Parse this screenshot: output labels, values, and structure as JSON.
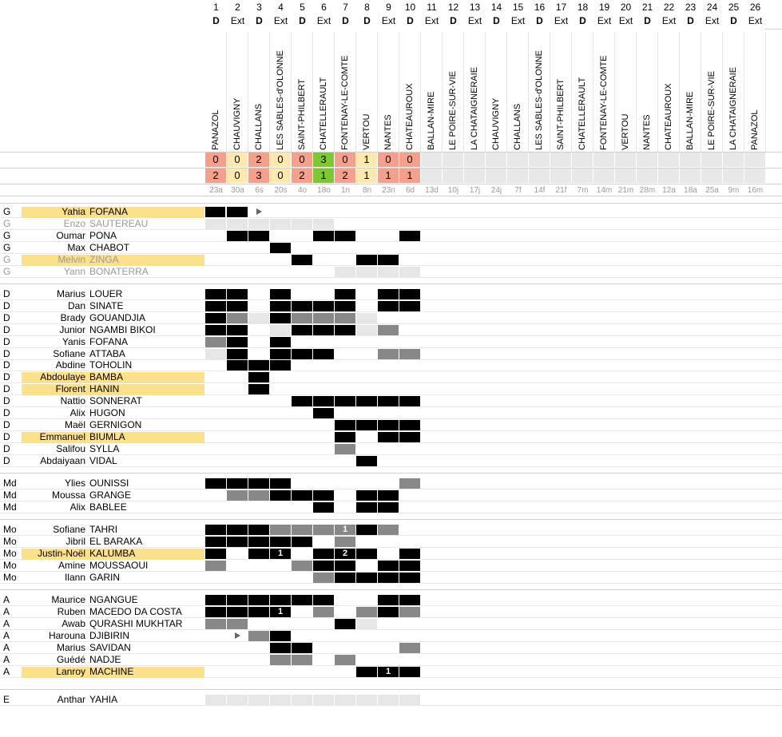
{
  "matches": [
    {
      "n": "1",
      "ha": "D",
      "venue": "PANAZOL",
      "s1": "0",
      "s2": "2",
      "c1": "#f4a08c",
      "c2": "#f4a08c",
      "date": "23a"
    },
    {
      "n": "2",
      "ha": "Ext",
      "venue": "CHAUVIGNY",
      "s1": "0",
      "s2": "0",
      "c1": "#fde8b0",
      "c2": "#fde8b0",
      "date": "30a"
    },
    {
      "n": "3",
      "ha": "D",
      "venue": "CHALLANS",
      "s1": "2",
      "s2": "3",
      "c1": "#f4a08c",
      "c2": "#f4a08c",
      "date": "6s"
    },
    {
      "n": "4",
      "ha": "Ext",
      "venue": "LES SABLES-d'OLONNE",
      "s1": "0",
      "s2": "0",
      "c1": "#fde8b0",
      "c2": "#fde8b0",
      "date": "20s"
    },
    {
      "n": "5",
      "ha": "D",
      "venue": "SAINT-PHILBERT",
      "s1": "0",
      "s2": "2",
      "c1": "#f4a08c",
      "c2": "#f4a08c",
      "date": "4o"
    },
    {
      "n": "6",
      "ha": "Ext",
      "venue": "CHATELLERAULT",
      "s1": "3",
      "s2": "1",
      "c1": "#7dc832",
      "c2": "#7dc832",
      "date": "18o"
    },
    {
      "n": "7",
      "ha": "D",
      "venue": "FONTENAY-LE-COMTE",
      "s1": "0",
      "s2": "2",
      "c1": "#f4a08c",
      "c2": "#f4a08c",
      "date": "1n"
    },
    {
      "n": "8",
      "ha": "D",
      "venue": "VERTOU",
      "s1": "1",
      "s2": "1",
      "c1": "#fde8b0",
      "c2": "#fde8b0",
      "date": "8n"
    },
    {
      "n": "9",
      "ha": "Ext",
      "venue": "NANTES",
      "s1": "0",
      "s2": "1",
      "c1": "#f4a08c",
      "c2": "#f4a08c",
      "date": "23n"
    },
    {
      "n": "10",
      "ha": "D",
      "venue": "CHATEAUROUX",
      "s1": "0",
      "s2": "1",
      "c1": "#f4a08c",
      "c2": "#f4a08c",
      "date": "6d"
    },
    {
      "n": "11",
      "ha": "Ext",
      "venue": "BALLAN-MIRE",
      "s1": "",
      "s2": "",
      "c1": "#e8e8e8",
      "c2": "#e8e8e8",
      "date": "13d"
    },
    {
      "n": "12",
      "ha": "D",
      "venue": "LE POIRE-SUR-VIE",
      "s1": "",
      "s2": "",
      "c1": "#e8e8e8",
      "c2": "#e8e8e8",
      "date": "10j"
    },
    {
      "n": "13",
      "ha": "Ext",
      "venue": "LA CHATAIGNERAIE",
      "s1": "",
      "s2": "",
      "c1": "#e8e8e8",
      "c2": "#e8e8e8",
      "date": "17j"
    },
    {
      "n": "14",
      "ha": "D",
      "venue": "CHAUVIGNY",
      "s1": "",
      "s2": "",
      "c1": "#e8e8e8",
      "c2": "#e8e8e8",
      "date": "24j"
    },
    {
      "n": "15",
      "ha": "Ext",
      "venue": "CHALLANS",
      "s1": "",
      "s2": "",
      "c1": "#e8e8e8",
      "c2": "#e8e8e8",
      "date": "7f"
    },
    {
      "n": "16",
      "ha": "D",
      "venue": "LES SABLES-d'OLONNE",
      "s1": "",
      "s2": "",
      "c1": "#e8e8e8",
      "c2": "#e8e8e8",
      "date": "14f"
    },
    {
      "n": "17",
      "ha": "Ext",
      "venue": "SAINT-PHILBERT",
      "s1": "",
      "s2": "",
      "c1": "#e8e8e8",
      "c2": "#e8e8e8",
      "date": "21f"
    },
    {
      "n": "18",
      "ha": "D",
      "venue": "CHATELLERAULT",
      "s1": "",
      "s2": "",
      "c1": "#e8e8e8",
      "c2": "#e8e8e8",
      "date": "7m"
    },
    {
      "n": "19",
      "ha": "Ext",
      "venue": "FONTENAY-LE-COMTE",
      "s1": "",
      "s2": "",
      "c1": "#e8e8e8",
      "c2": "#e8e8e8",
      "date": "14m"
    },
    {
      "n": "20",
      "ha": "Ext",
      "venue": "VERTOU",
      "s1": "",
      "s2": "",
      "c1": "#e8e8e8",
      "c2": "#e8e8e8",
      "date": "21m"
    },
    {
      "n": "21",
      "ha": "D",
      "venue": "NANTES",
      "s1": "",
      "s2": "",
      "c1": "#e8e8e8",
      "c2": "#e8e8e8",
      "date": "28m"
    },
    {
      "n": "22",
      "ha": "Ext",
      "venue": "CHATEAUROUX",
      "s1": "",
      "s2": "",
      "c1": "#e8e8e8",
      "c2": "#e8e8e8",
      "date": "12a"
    },
    {
      "n": "23",
      "ha": "D",
      "venue": "BALLAN-MIRE",
      "s1": "",
      "s2": "",
      "c1": "#e8e8e8",
      "c2": "#e8e8e8",
      "date": "18a"
    },
    {
      "n": "24",
      "ha": "Ext",
      "venue": "LE POIRE-SUR-VIE",
      "s1": "",
      "s2": "",
      "c1": "#e8e8e8",
      "c2": "#e8e8e8",
      "date": "25a"
    },
    {
      "n": "25",
      "ha": "D",
      "venue": "LA CHATAIGNERAIE",
      "s1": "",
      "s2": "",
      "c1": "#e8e8e8",
      "c2": "#e8e8e8",
      "date": "9m"
    },
    {
      "n": "26",
      "ha": "Ext",
      "venue": "PANAZOL",
      "s1": "",
      "s2": "",
      "c1": "#e8e8e8",
      "c2": "#e8e8e8",
      "date": "16m"
    }
  ],
  "colors": {
    "black": "#000000",
    "dark": "#888888",
    "light": "#e6e6e6",
    "highlight": "#fde08c",
    "arrow": "#666666"
  },
  "players": [
    {
      "pos": "G",
      "first": "Yahia",
      "last": "FOFANA",
      "hl": true,
      "dim": false,
      "cells": "bBa"
    },
    {
      "pos": "G",
      "first": "Enzo",
      "last": "SAUTEREAU",
      "hl": false,
      "dim": true,
      "cells": "LLLLLL"
    },
    {
      "pos": "G",
      "first": "Oumar",
      "last": "PONA",
      "hl": false,
      "dim": false,
      "cells": "_BB_-BB__B"
    },
    {
      "pos": "G",
      "first": "Max",
      "last": "CHABOT",
      "hl": false,
      "dim": false,
      "cells": "___B"
    },
    {
      "pos": "G",
      "first": "Melvin",
      "last": "ZINGA",
      "hl": true,
      "dim": true,
      "cells": "____B__BB"
    },
    {
      "pos": "G",
      "first": "Yann",
      "last": "BONATERRA",
      "hl": false,
      "dim": true,
      "cells": "______LLLL"
    },
    {
      "pos": "D",
      "first": "Marius",
      "last": "LOUER",
      "hl": false,
      "dim": false,
      "cells": "BB_B__B_BB"
    },
    {
      "pos": "D",
      "first": "Dan",
      "last": "SINATE",
      "hl": false,
      "dim": false,
      "cells": "BB_BBBB_BB"
    },
    {
      "pos": "D",
      "first": "Brady",
      "last": "GOUANDJIA",
      "hl": false,
      "dim": false,
      "cells": "BDLBDDDL"
    },
    {
      "pos": "D",
      "first": "Junior",
      "last": "NGAMBI BIKOI",
      "hl": false,
      "dim": false,
      "cells": "BB_LBBBLD"
    },
    {
      "pos": "D",
      "first": "Yanis",
      "last": "FOFANA",
      "hl": false,
      "dim": false,
      "cells": "DB_B"
    },
    {
      "pos": "D",
      "first": "Sofiane",
      "last": "ATTABA",
      "hl": false,
      "dim": false,
      "cells": "LB_BBB__DD"
    },
    {
      "pos": "D",
      "first": "Abdine",
      "last": "TOHOLIN",
      "hl": false,
      "dim": false,
      "cells": "_BBB"
    },
    {
      "pos": "D",
      "first": "Abdoulaye",
      "last": "BAMBA",
      "hl": true,
      "dim": false,
      "cells": "__B"
    },
    {
      "pos": "D",
      "first": "Florent",
      "last": "HANIN",
      "hl": true,
      "dim": false,
      "cells": "__B"
    },
    {
      "pos": "D",
      "first": "Nattio",
      "last": "SONNERAT",
      "hl": false,
      "dim": false,
      "cells": "____BBBBBB"
    },
    {
      "pos": "D",
      "first": "Alix",
      "last": "HUGON",
      "hl": false,
      "dim": false,
      "cells": "_____B"
    },
    {
      "pos": "D",
      "first": "Maël",
      "last": "GERNIGON",
      "hl": false,
      "dim": false,
      "cells": "______BBBB"
    },
    {
      "pos": "D",
      "first": "Emmanuel",
      "last": "BIUMLA",
      "hl": true,
      "dim": false,
      "cells": "______B_BB"
    },
    {
      "pos": "D",
      "first": "Salifou",
      "last": "SYLLA",
      "hl": false,
      "dim": false,
      "cells": "______D"
    },
    {
      "pos": "D",
      "first": "Abdaiyaan",
      "last": "VIDAL",
      "hl": false,
      "dim": false,
      "cells": "_______B"
    },
    {
      "pos": "Md",
      "first": "Ylies",
      "last": "OUNISSI",
      "hl": false,
      "dim": false,
      "cells": "BBBB_____D"
    },
    {
      "pos": "Md",
      "first": "Moussa",
      "last": "GRANGE",
      "hl": false,
      "dim": false,
      "cells": "_DDBBB_BB"
    },
    {
      "pos": "Md",
      "first": "Alix",
      "last": "BABLEE",
      "hl": false,
      "dim": false,
      "cells": "_____B_BB"
    },
    {
      "pos": "Mo",
      "first": "Sofiane",
      "last": "TAHRI",
      "hl": false,
      "dim": false,
      "cells": "BBBDDDBBD"
    },
    {
      "pos": "Mo",
      "first": "Jibril",
      "last": "EL BARAKA",
      "hl": false,
      "dim": false,
      "cells": "BBBBB_D"
    },
    {
      "pos": "Mo",
      "first": "Justin-Noël",
      "last": "KALUMBA",
      "hl": true,
      "dim": false,
      "cells": "B_B__BBB_B"
    },
    {
      "pos": "Mo",
      "first": "Amine",
      "last": "MOUSSAOUI",
      "hl": false,
      "dim": false,
      "cells": "D___DBB_BB"
    },
    {
      "pos": "Mo",
      "first": "Ilann",
      "last": "GARIN",
      "hl": false,
      "dim": false,
      "cells": "_____DBBBB"
    },
    {
      "pos": "A",
      "first": "Maurice",
      "last": "NGANGUE",
      "hl": false,
      "dim": false,
      "cells": "BBBBBB__BB"
    },
    {
      "pos": "A",
      "first": "Ruben",
      "last": "MACEDO DA COSTA",
      "hl": false,
      "dim": false,
      "cells": "BBB__D_DBD"
    },
    {
      "pos": "A",
      "first": "Awab",
      "last": "QURASHI MUKHTAR",
      "hl": false,
      "dim": false,
      "cells": "DD____BL"
    },
    {
      "pos": "A",
      "first": "Harouna",
      "last": "DJIBIRIN",
      "hl": false,
      "dim": false,
      "cells": "_aDB"
    },
    {
      "pos": "A",
      "first": "Marius",
      "last": "SAVIDAN",
      "hl": false,
      "dim": false,
      "cells": "___BB____D"
    },
    {
      "pos": "A",
      "first": "Guédé",
      "last": "NADJE",
      "hl": false,
      "dim": false,
      "cells": "___DD_D"
    },
    {
      "pos": "A",
      "first": "Lanroy",
      "last": "MACHINE",
      "hl": true,
      "dim": false,
      "cells": "_______B_B"
    },
    {
      "pos": "E",
      "first": "Anthar",
      "last": "YAHIA",
      "hl": false,
      "dim": false,
      "cells": "LLLLLLLLLL"
    }
  ],
  "numbers": [
    {
      "p": 24,
      "m": 6,
      "v": "1",
      "c": "#888888"
    },
    {
      "p": 26,
      "m": 3,
      "v": "1",
      "c": "#000000"
    },
    {
      "p": 26,
      "m": 6,
      "v": "2",
      "c": "#000000"
    },
    {
      "p": 30,
      "m": 3,
      "v": "1",
      "c": "#000000"
    },
    {
      "p": 35,
      "m": 8,
      "v": "1",
      "c": "#000000"
    }
  ]
}
